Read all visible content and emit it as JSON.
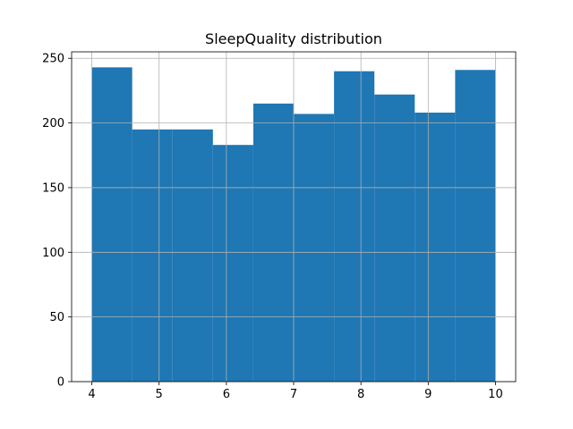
{
  "chart_data": {
    "type": "bar",
    "title": "SleepQuality distribution",
    "xlabel": "",
    "ylabel": "",
    "bins": [
      {
        "x0": 4.0,
        "x1": 4.6,
        "count": 243
      },
      {
        "x0": 4.6,
        "x1": 5.2,
        "count": 195
      },
      {
        "x0": 5.2,
        "x1": 5.8,
        "count": 195
      },
      {
        "x0": 5.8,
        "x1": 6.4,
        "count": 183
      },
      {
        "x0": 6.4,
        "x1": 7.0,
        "count": 215
      },
      {
        "x0": 7.0,
        "x1": 7.6,
        "count": 207
      },
      {
        "x0": 7.6,
        "x1": 8.2,
        "count": 240
      },
      {
        "x0": 8.2,
        "x1": 8.8,
        "count": 222
      },
      {
        "x0": 8.8,
        "x1": 9.4,
        "count": 208
      },
      {
        "x0": 9.4,
        "x1": 10.0,
        "count": 241
      }
    ],
    "xlim": [
      3.7,
      10.3
    ],
    "ylim": [
      0,
      255
    ],
    "xticks": [
      4,
      5,
      6,
      7,
      8,
      9,
      10
    ],
    "yticks": [
      0,
      50,
      100,
      150,
      200,
      250
    ],
    "grid": true,
    "colors": {
      "bar": "#1f77b4",
      "grid": "#b0b0b0",
      "axis": "#000000"
    }
  }
}
